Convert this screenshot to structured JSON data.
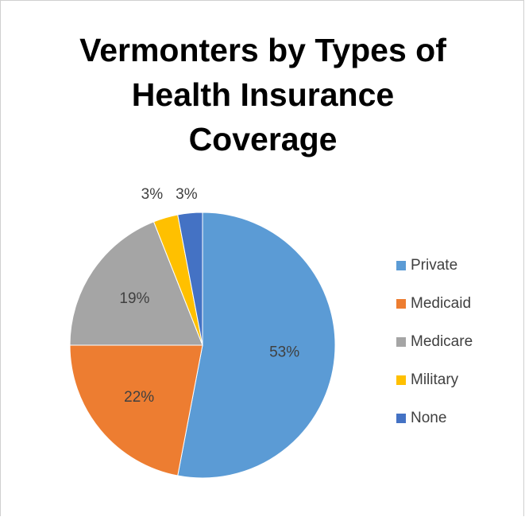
{
  "chart_data": {
    "type": "pie",
    "title_lines": [
      "Vermonters by Types of",
      "Health Insurance",
      "Coverage"
    ],
    "categories": [
      "Private",
      "Medicaid",
      "Medicare",
      "Military",
      "None"
    ],
    "values": [
      53,
      22,
      19,
      3,
      3
    ],
    "labels": [
      "53%",
      "22%",
      "19%",
      "3%",
      "3%"
    ],
    "colors": [
      "#5b9bd5",
      "#ed7d31",
      "#a5a5a5",
      "#ffc000",
      "#4472c4"
    ],
    "start": "top",
    "direction": "clockwise",
    "legend_position": "right"
  }
}
